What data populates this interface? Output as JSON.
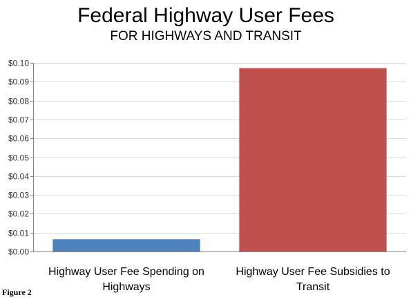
{
  "figure_label": "Figure 2",
  "chart_data": {
    "type": "bar",
    "title": "Federal Highway User Fees",
    "subtitle": "FOR HIGHWAYS AND TRANSIT",
    "categories": [
      [
        "Highway User Fee Spending on",
        "Highways"
      ],
      [
        "Highway User Fee Subsidies to",
        "Transit"
      ]
    ],
    "values": [
      0.0065,
      0.0972
    ],
    "colors": [
      "#4f81bd",
      "#c0504d"
    ],
    "ylim": [
      0,
      0.1
    ],
    "yticks": [
      "$0.00",
      "$0.01",
      "$0.02",
      "$0.03",
      "$0.04",
      "$0.05",
      "$0.06",
      "$0.07",
      "$0.08",
      "$0.09",
      "$0.10"
    ],
    "xlabel": "",
    "ylabel": "",
    "grid": true,
    "legend": "none"
  }
}
